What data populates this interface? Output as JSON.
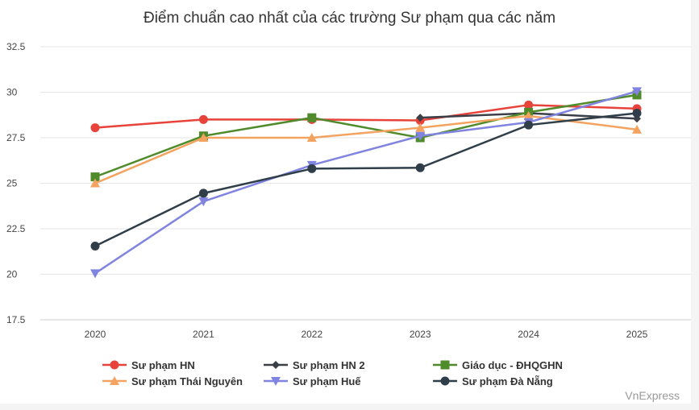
{
  "chart_data": {
    "type": "line",
    "title": "Điểm chuẩn cao nhất của các trường Sư phạm qua các năm",
    "x": [
      "2020",
      "2021",
      "2022",
      "2023",
      "2024",
      "2025"
    ],
    "ylim": [
      17.5,
      32.5
    ],
    "yticks": [
      "17.5",
      "20",
      "22.5",
      "25",
      "27.5",
      "30",
      "32.5"
    ],
    "grid": true,
    "legend_position": "bottom",
    "series": [
      {
        "name": "Sư phạm HN",
        "color": "#e8433a",
        "marker": "circle",
        "values": [
          28.05,
          28.5,
          28.5,
          28.45,
          29.3,
          29.1
        ]
      },
      {
        "name": "Sư phạm HN 2",
        "color": "#3a3f48",
        "marker": "diamond",
        "values": [
          null,
          null,
          null,
          28.6,
          28.85,
          28.55
        ]
      },
      {
        "name": "Giáo dục - ĐHQGHN",
        "color": "#4f8a2b",
        "marker": "square",
        "values": [
          25.35,
          27.6,
          28.6,
          27.5,
          28.9,
          29.85
        ]
      },
      {
        "name": "Sư phạm Thái Nguyên",
        "color": "#f3a35f",
        "marker": "triangle-up",
        "values": [
          25.0,
          27.5,
          27.5,
          28.05,
          28.7,
          27.95
        ]
      },
      {
        "name": "Sư phạm Huế",
        "color": "#8084e0",
        "marker": "triangle-down",
        "values": [
          20.05,
          24.0,
          26.0,
          27.6,
          28.35,
          30.05
        ]
      },
      {
        "name": "Sư phạm Đà Nẵng",
        "color": "#2f3e48",
        "marker": "circle",
        "values": [
          21.55,
          24.45,
          25.8,
          25.85,
          28.2,
          28.85
        ]
      }
    ]
  },
  "credit": "VnExpress"
}
